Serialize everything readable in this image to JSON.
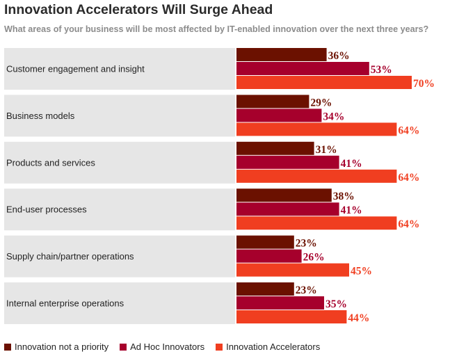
{
  "title": "Innovation Accelerators Will Surge Ahead",
  "subtitle": "What areas of your business will be most affected by IT-enabled innovation over the next three years?",
  "chart_data": {
    "type": "bar",
    "orientation": "horizontal",
    "categories": [
      "Customer engagement and insight",
      "Business models",
      "Products and services",
      "End-user processes",
      "Supply chain/partner operations",
      "Internal enterprise operations"
    ],
    "series": [
      {
        "name": "Innovation not a priority",
        "color": "#6b1100",
        "values": [
          36,
          29,
          31,
          38,
          23,
          23
        ],
        "labels": [
          "36%",
          "29%",
          "31%",
          "38%",
          "23%",
          "23%"
        ]
      },
      {
        "name": "Ad Hoc Innovators",
        "color": "#a6002c",
        "values": [
          53,
          34,
          41,
          41,
          26,
          35
        ],
        "labels": [
          "53%",
          "34%",
          "41%",
          "41%",
          "26%",
          "35%"
        ]
      },
      {
        "name": "Innovation Accelerators",
        "color": "#f03e20",
        "values": [
          70,
          64,
          64,
          64,
          45,
          44
        ],
        "labels": [
          "70%",
          "64%",
          "64%",
          "64%",
          "45%",
          "44%"
        ]
      }
    ],
    "xlim": [
      0,
      100
    ],
    "value_suffix": "%",
    "grid": false,
    "legend_position": "bottom-left"
  },
  "legend": {
    "items": [
      "Innovation not a priority",
      "Ad Hoc Innovators",
      "Innovation Accelerators"
    ]
  },
  "colors": {
    "series_1": "#6b1100",
    "series_2": "#a6002c",
    "series_3": "#f03e20",
    "panel": "#e6e6e6"
  }
}
